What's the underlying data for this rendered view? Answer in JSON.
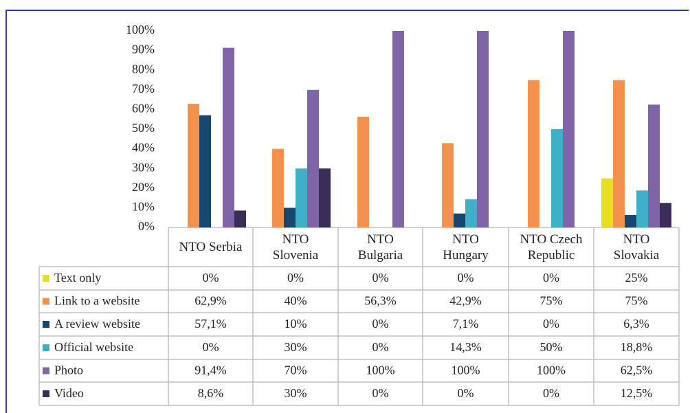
{
  "chart_data": {
    "type": "bar",
    "categories": [
      "NTO Serbia",
      "NTO Slovenia",
      "NTO Bulgaria",
      "NTO Hungary",
      "NTO Czech Republic",
      "NTO Slovakia"
    ],
    "series": [
      {
        "name": "Text only",
        "color": "#e6e01e",
        "values": [
          0,
          0,
          0,
          0,
          0,
          25
        ],
        "value_labels": [
          "0%",
          "0%",
          "0%",
          "0%",
          "0%",
          "25%"
        ]
      },
      {
        "name": "Link to a website",
        "color": "#f4914c",
        "values": [
          62.9,
          40,
          56.3,
          42.9,
          75,
          75
        ],
        "value_labels": [
          "62,9%",
          "40%",
          "56,3%",
          "42,9%",
          "75%",
          "75%"
        ]
      },
      {
        "name": "A review website",
        "color": "#17466f",
        "values": [
          57.1,
          10,
          0,
          7.1,
          0,
          6.3
        ],
        "value_labels": [
          "57,1%",
          "10%",
          "0%",
          "7,1%",
          "0%",
          "6,3%"
        ]
      },
      {
        "name": "Official website",
        "color": "#40b0c8",
        "values": [
          0,
          30,
          0,
          14.3,
          50,
          18.8
        ],
        "value_labels": [
          "0%",
          "30%",
          "0%",
          "14,3%",
          "50%",
          "18,8%"
        ]
      },
      {
        "name": "Photo",
        "color": "#8064a8",
        "values": [
          91.4,
          70,
          100,
          100,
          100,
          62.5
        ],
        "value_labels": [
          "91,4%",
          "70%",
          "100%",
          "100%",
          "100%",
          "62,5%"
        ]
      },
      {
        "name": "Video",
        "color": "#3a2e58",
        "values": [
          8.6,
          30,
          0,
          0,
          0,
          12.5
        ],
        "value_labels": [
          "8,6%",
          "30%",
          "0%",
          "0%",
          "0%",
          "12,5%"
        ]
      }
    ],
    "ylim": [
      0,
      100
    ],
    "yticks": [
      {
        "value": 0,
        "label": "0%"
      },
      {
        "value": 10,
        "label": "10%"
      },
      {
        "value": 20,
        "label": "20%"
      },
      {
        "value": 30,
        "label": "30%"
      },
      {
        "value": 40,
        "label": "40%"
      },
      {
        "value": 50,
        "label": "50%"
      },
      {
        "value": 60,
        "label": "60%"
      },
      {
        "value": 70,
        "label": "70%"
      },
      {
        "value": 80,
        "label": "80%"
      },
      {
        "value": 90,
        "label": "90%"
      },
      {
        "value": 100,
        "label": "100%"
      }
    ],
    "grid": false
  }
}
